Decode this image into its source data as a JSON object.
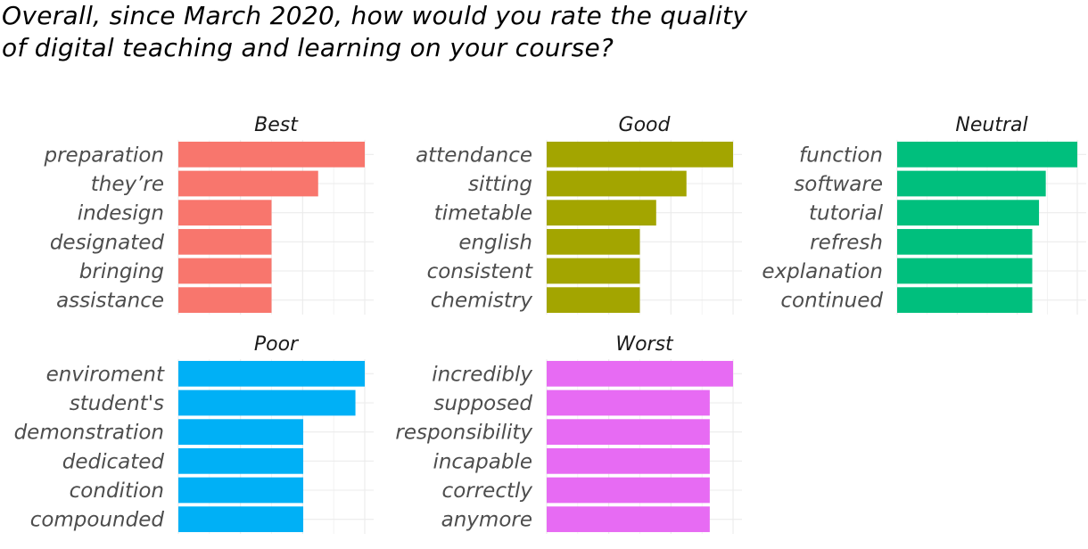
{
  "chart_data": {
    "type": "bar",
    "orientation": "horizontal",
    "title_lines": [
      "Overall, since March 2020, how would you rate the quality",
      "of digital teaching and learning on your course?"
    ],
    "xlabel": "",
    "ylabel": "",
    "grid": true,
    "facets": [
      {
        "name": "Best",
        "color": "#F8766D",
        "categories": [
          "preparation",
          "they’re",
          "indesign",
          "designated",
          "bringing",
          "assistance"
        ],
        "values": [
          4,
          3,
          2,
          2,
          2,
          2
        ]
      },
      {
        "name": "Good",
        "color": "#A3A500",
        "categories": [
          "attendance",
          "sitting",
          "timetable",
          "english",
          "consistent",
          "chemistry"
        ],
        "values": [
          8,
          6,
          4.7,
          4,
          4,
          4
        ]
      },
      {
        "name": "Neutral",
        "color": "#00BF7D",
        "categories": [
          "function",
          "software",
          "tutorial",
          "refresh",
          "explanation",
          "continued"
        ],
        "values": [
          8,
          6.6,
          6.3,
          6,
          6,
          6
        ]
      },
      {
        "name": "Poor",
        "color": "#00B0F6",
        "categories": [
          "enviroment",
          "student's",
          "demonstration",
          "dedicated",
          "condition",
          "compounded"
        ],
        "values": [
          10,
          9.5,
          6.7,
          6.7,
          6.7,
          6.7
        ]
      },
      {
        "name": "Worst",
        "color": "#E76BF3",
        "categories": [
          "incredibly",
          "supposed",
          "responsibility",
          "incapable",
          "correctly",
          "anymore"
        ],
        "values": [
          8,
          7,
          7,
          7,
          7,
          7
        ]
      }
    ]
  }
}
